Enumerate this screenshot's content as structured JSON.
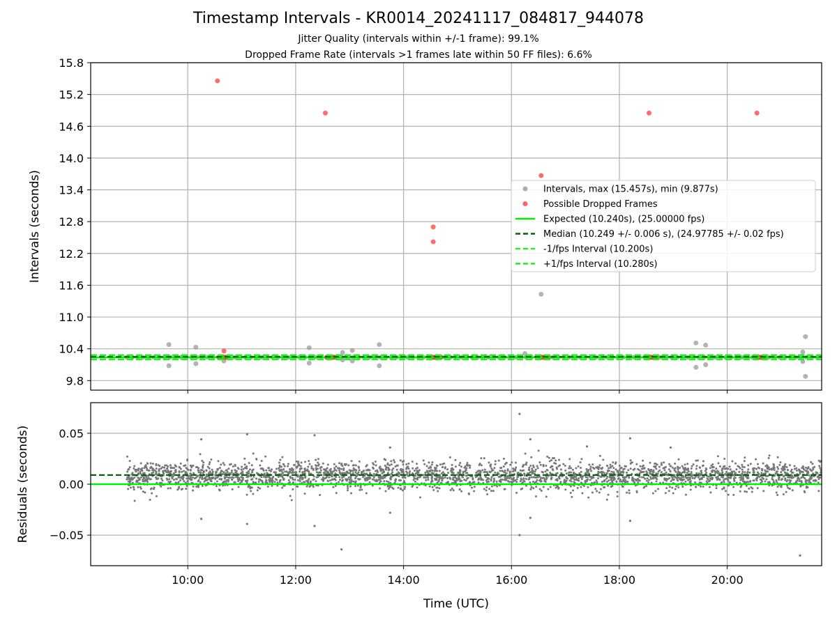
{
  "title": "Timestamp Intervals - KR0014_20241117_084817_944078",
  "subtitle_1": "Jitter Quality (intervals within +/-1 frame): 99.1%",
  "subtitle_2": "Dropped Frame Rate (intervals >1 frames late within 50 FF files): 6.6%",
  "colors": {
    "intervals": "#999999",
    "dropped": "#ff3b3b",
    "expected": "#00ee00",
    "median": "#006400",
    "fps_bounds": "#22ee22",
    "residual_points": "#777777",
    "grid": "#b0b0b0"
  },
  "chart_data": [
    {
      "type": "scatter",
      "ylabel": "Intervals (seconds)",
      "x_unit": "hours UTC",
      "xlim": [
        8.2,
        21.75
      ],
      "ylim": [
        9.62,
        15.8
      ],
      "yticks": [
        "9.8",
        "10.4",
        "11.0",
        "11.6",
        "12.2",
        "12.8",
        "13.4",
        "14.0",
        "14.6",
        "15.2",
        "15.8"
      ],
      "grid": true,
      "legend_position": "center-right",
      "legend": [
        "Intervals, max (15.457s), min (9.877s)",
        "Possible Dropped Frames",
        "Expected (10.240s), (25.00000 fps)",
        "Median (10.249 +/- 0.006 s), (24.97785 +/- 0.02 fps)",
        "-1/fps Interval (10.200s)",
        "+1/fps Interval (10.280s)"
      ],
      "reference_lines": {
        "expected": 10.24,
        "median": 10.249,
        "minus_1fps": 10.2,
        "plus_1fps": 10.28
      },
      "baseline_range": [
        8.87,
        21.75
      ],
      "baseline_interval": 10.24,
      "dropped_clusters": [
        {
          "start": 10.58,
          "end": 10.72,
          "value": 10.24
        },
        {
          "start": 12.58,
          "end": 12.72,
          "value": 10.24
        },
        {
          "start": 14.55,
          "end": 14.7,
          "value": 10.24
        },
        {
          "start": 16.55,
          "end": 16.7,
          "value": 10.24
        },
        {
          "start": 18.55,
          "end": 18.7,
          "value": 10.24
        },
        {
          "start": 20.55,
          "end": 20.7,
          "value": 10.24
        }
      ],
      "interval_outliers": [
        {
          "x": 9.65,
          "y": 10.48
        },
        {
          "x": 9.65,
          "y": 10.08
        },
        {
          "x": 10.15,
          "y": 10.43
        },
        {
          "x": 10.15,
          "y": 10.12
        },
        {
          "x": 10.67,
          "y": 10.17
        },
        {
          "x": 12.25,
          "y": 10.42
        },
        {
          "x": 12.25,
          "y": 10.13
        },
        {
          "x": 12.87,
          "y": 10.33
        },
        {
          "x": 12.87,
          "y": 10.19
        },
        {
          "x": 13.05,
          "y": 10.37
        },
        {
          "x": 13.05,
          "y": 10.17
        },
        {
          "x": 13.55,
          "y": 10.48
        },
        {
          "x": 13.55,
          "y": 10.08
        },
        {
          "x": 16.25,
          "y": 10.31
        },
        {
          "x": 16.55,
          "y": 11.43
        },
        {
          "x": 19.42,
          "y": 10.51
        },
        {
          "x": 19.42,
          "y": 10.05
        },
        {
          "x": 19.6,
          "y": 10.47
        },
        {
          "x": 19.6,
          "y": 10.1
        },
        {
          "x": 21.4,
          "y": 10.34
        },
        {
          "x": 21.4,
          "y": 10.16
        },
        {
          "x": 21.45,
          "y": 10.63
        },
        {
          "x": 21.45,
          "y": 9.88
        }
      ],
      "dropped_frames": [
        {
          "x": 10.55,
          "y": 15.457
        },
        {
          "x": 12.55,
          "y": 14.85
        },
        {
          "x": 14.55,
          "y": 12.7
        },
        {
          "x": 14.55,
          "y": 12.42
        },
        {
          "x": 16.55,
          "y": 13.67
        },
        {
          "x": 18.55,
          "y": 14.85
        },
        {
          "x": 20.55,
          "y": 14.85
        },
        {
          "x": 10.67,
          "y": 10.36
        }
      ]
    },
    {
      "type": "scatter",
      "ylabel": "Residuals (seconds)",
      "xlabel": "Time (UTC)",
      "xlim": [
        8.2,
        21.75
      ],
      "ylim": [
        -0.08,
        0.08
      ],
      "yticks": [
        "−0.05",
        "0.00",
        "0.05"
      ],
      "xticks": [
        "10:00",
        "12:00",
        "14:00",
        "16:00",
        "18:00",
        "20:00"
      ],
      "grid": true,
      "reference_lines": {
        "expected_residual": 0.0,
        "median_residual": 0.009
      },
      "point_cloud": {
        "x_range": [
          8.87,
          21.75
        ],
        "center": 0.008,
        "typical_spread": 0.007
      },
      "residual_outliers": [
        {
          "x": 10.25,
          "y": 0.044
        },
        {
          "x": 10.25,
          "y": -0.034
        },
        {
          "x": 11.1,
          "y": 0.049
        },
        {
          "x": 11.1,
          "y": -0.039
        },
        {
          "x": 12.35,
          "y": 0.048
        },
        {
          "x": 12.35,
          "y": -0.041
        },
        {
          "x": 12.85,
          "y": -0.064
        },
        {
          "x": 16.15,
          "y": 0.069
        },
        {
          "x": 16.15,
          "y": -0.05
        },
        {
          "x": 16.35,
          "y": 0.044
        },
        {
          "x": 16.35,
          "y": -0.033
        },
        {
          "x": 17.4,
          "y": 0.037
        },
        {
          "x": 18.2,
          "y": 0.045
        },
        {
          "x": 18.2,
          "y": -0.036
        },
        {
          "x": 18.95,
          "y": 0.036
        },
        {
          "x": 21.35,
          "y": -0.07
        },
        {
          "x": 13.75,
          "y": -0.028
        },
        {
          "x": 13.75,
          "y": 0.036
        }
      ]
    }
  ]
}
